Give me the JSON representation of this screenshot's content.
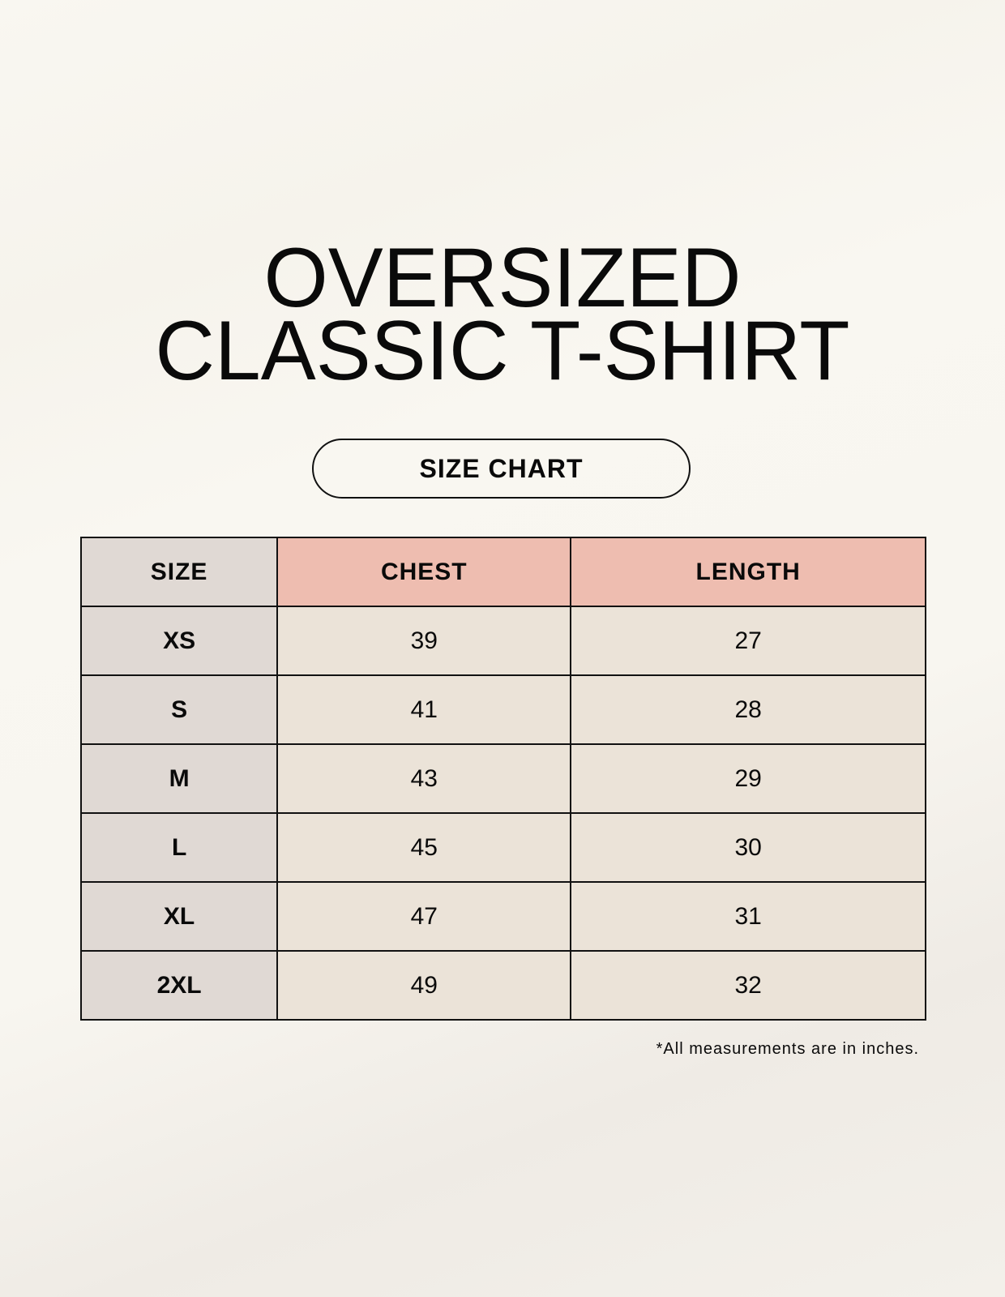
{
  "title": {
    "line1": "OVERSIZED",
    "line2": "CLASSIC T-SHIRT"
  },
  "badge": "SIZE CHART",
  "table": {
    "headers": [
      "SIZE",
      "CHEST",
      "LENGTH"
    ],
    "rows": [
      [
        "XS",
        "39",
        "27"
      ],
      [
        "S",
        "41",
        "28"
      ],
      [
        "M",
        "43",
        "29"
      ],
      [
        "L",
        "45",
        "30"
      ],
      [
        "XL",
        "47",
        "31"
      ],
      [
        "2XL",
        "49",
        "32"
      ]
    ]
  },
  "footnote": "*All measurements are in inches.",
  "colors": {
    "header_size": "#e0d9d4",
    "header_measure": "#eebdb0",
    "body": "#ebe3d8",
    "background": "#f8f6f0"
  }
}
